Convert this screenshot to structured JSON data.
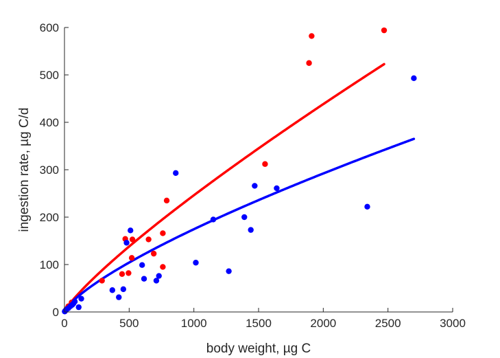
{
  "chart_data": {
    "type": "scatter",
    "title": "",
    "xlabel": "body weight, µg C",
    "ylabel": "ingestion rate, µg C/d",
    "xlim": [
      0,
      3000
    ],
    "ylim": [
      0,
      600
    ],
    "xticks": [
      0,
      500,
      1000,
      1500,
      2000,
      2500,
      3000
    ],
    "yticks": [
      0,
      100,
      200,
      300,
      400,
      500,
      600
    ],
    "grid": false,
    "legend": "none",
    "series": [
      {
        "color": "#ff0000",
        "marker": "dot",
        "points": [
          [
            5,
            2
          ],
          [
            15,
            6
          ],
          [
            30,
            12
          ],
          [
            55,
            20
          ],
          [
            290,
            66
          ],
          [
            445,
            80
          ],
          [
            470,
            154
          ],
          [
            495,
            82
          ],
          [
            520,
            114
          ],
          [
            525,
            153
          ],
          [
            650,
            153
          ],
          [
            690,
            123
          ],
          [
            760,
            166
          ],
          [
            760,
            95
          ],
          [
            790,
            235
          ],
          [
            1550,
            312
          ],
          [
            1890,
            525
          ],
          [
            1910,
            582
          ],
          [
            2470,
            594
          ]
        ],
        "fit": {
          "type": "power",
          "a": 0.78,
          "b": 0.833,
          "xmin": 0,
          "xmax": 2470
        }
      },
      {
        "color": "#0000ff",
        "marker": "dot",
        "points": [
          [
            2,
            1
          ],
          [
            8,
            3
          ],
          [
            15,
            5
          ],
          [
            30,
            8
          ],
          [
            45,
            12
          ],
          [
            60,
            15
          ],
          [
            70,
            18
          ],
          [
            80,
            22
          ],
          [
            110,
            10
          ],
          [
            130,
            28
          ],
          [
            370,
            46
          ],
          [
            420,
            31
          ],
          [
            455,
            48
          ],
          [
            480,
            146
          ],
          [
            510,
            172
          ],
          [
            600,
            99
          ],
          [
            615,
            70
          ],
          [
            710,
            66
          ],
          [
            730,
            76
          ],
          [
            860,
            293
          ],
          [
            1015,
            104
          ],
          [
            1150,
            195
          ],
          [
            1270,
            86
          ],
          [
            1390,
            200
          ],
          [
            1440,
            173
          ],
          [
            1470,
            266
          ],
          [
            1640,
            261
          ],
          [
            2340,
            222
          ],
          [
            2700,
            493
          ]
        ],
        "fit": {
          "type": "power",
          "a": 1.03,
          "b": 0.743,
          "xmin": 0,
          "xmax": 2700
        }
      }
    ]
  }
}
